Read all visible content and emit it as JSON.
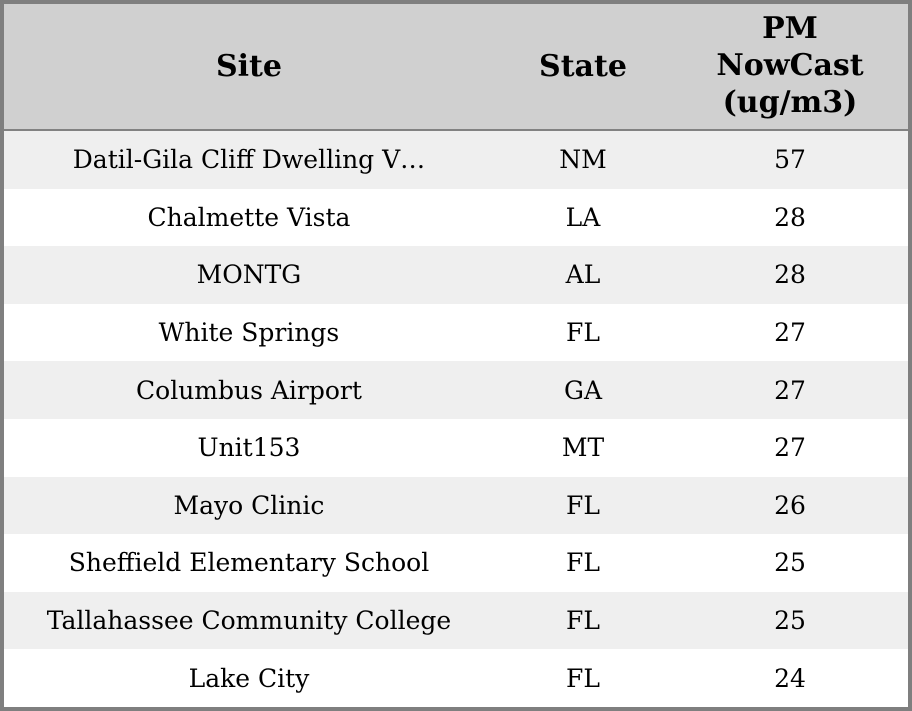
{
  "header": {
    "site": "Site",
    "state": "State",
    "pm": "PM NowCast (ug/m3)",
    "pm_multiline": "PM\nNowCast\n(ug/m3)"
  },
  "chart_data": {
    "type": "table",
    "columns": [
      "Site",
      "State",
      "PM NowCast (ug/m3)"
    ],
    "rows": [
      {
        "site": "Datil-Gila Cliff Dwelling V…",
        "state": "NM",
        "pm": 57
      },
      {
        "site": "Chalmette Vista",
        "state": "LA",
        "pm": 28
      },
      {
        "site": "MONTG",
        "state": "AL",
        "pm": 28
      },
      {
        "site": "White Springs",
        "state": "FL",
        "pm": 27
      },
      {
        "site": "Columbus Airport",
        "state": "GA",
        "pm": 27
      },
      {
        "site": "Unit153",
        "state": "MT",
        "pm": 27
      },
      {
        "site": "Mayo Clinic",
        "state": "FL",
        "pm": 26
      },
      {
        "site": "Sheffield Elementary School",
        "state": "FL",
        "pm": 25
      },
      {
        "site": "Tallahassee Community College",
        "state": "FL",
        "pm": 25
      },
      {
        "site": "Lake City",
        "state": "FL",
        "pm": 24
      }
    ]
  },
  "colors": {
    "outer_border": "#7f7f7f",
    "header_bg": "#d0d0d0",
    "header_separator": "#828282",
    "row_odd_bg": "#efefef",
    "row_even_bg": "#ffffff",
    "text": "#000000"
  }
}
